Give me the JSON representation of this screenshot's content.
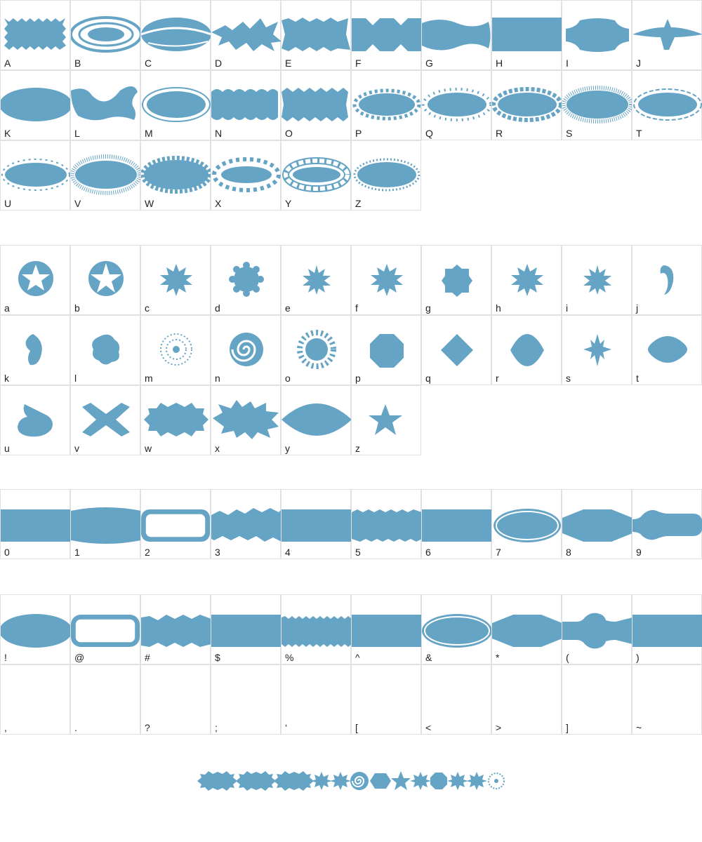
{
  "glyph_color": "#66a4c5",
  "upper": {
    "row1": [
      "A",
      "B",
      "C",
      "D",
      "E",
      "F",
      "G",
      "H",
      "I",
      "J"
    ],
    "row2": [
      "K",
      "L",
      "M",
      "N",
      "O",
      "P",
      "Q",
      "R",
      "S",
      "T"
    ],
    "row3": [
      "U",
      "V",
      "W",
      "X",
      "Y",
      "Z"
    ]
  },
  "lower": {
    "row1": [
      "a",
      "b",
      "c",
      "d",
      "e",
      "f",
      "g",
      "h",
      "i",
      "j"
    ],
    "row2": [
      "k",
      "l",
      "m",
      "n",
      "o",
      "p",
      "q",
      "r",
      "s",
      "t"
    ],
    "row3": [
      "u",
      "v",
      "w",
      "x",
      "y",
      "z"
    ]
  },
  "digits": {
    "row1": [
      "0",
      "1",
      "2",
      "3",
      "4",
      "5",
      "6",
      "7",
      "8",
      "9"
    ]
  },
  "symbols": {
    "row1": [
      "!",
      "@",
      "#",
      "$",
      "%",
      "^",
      "&",
      "*",
      "(",
      ")"
    ],
    "row2": [
      ",",
      ".",
      "?",
      ";",
      "‘",
      "[",
      "<",
      ">",
      "]",
      "~"
    ]
  },
  "sample_glyphs": [
    "wide-burst",
    "wide-burst",
    "wide-burst",
    "burst",
    "burst",
    "spiral",
    "hexagon",
    "star",
    "burst",
    "octagon",
    "burst",
    "burst",
    "swirl"
  ]
}
